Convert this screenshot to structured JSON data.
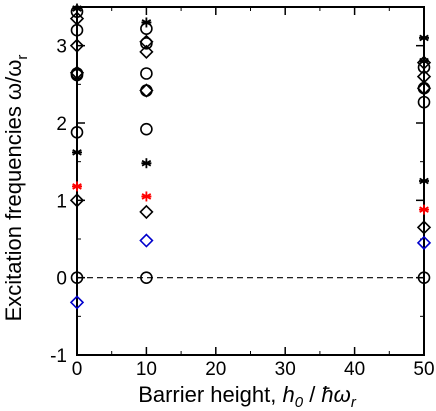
{
  "chart_data": {
    "type": "scatter",
    "title": "",
    "xlabel": {
      "prefix": "Barrier height, ",
      "h": "h",
      "h_sub": "0",
      "slash": " / ",
      "hbar": "ħ",
      "omega": "ω",
      "omega_sub": "r"
    },
    "ylabel": {
      "main": "Excitation frequencies ω/ω",
      "sub": "r"
    },
    "xlim": [
      0,
      50
    ],
    "ylim": [
      -1,
      3.5
    ],
    "xticks": [
      0,
      10,
      20,
      30,
      40,
      50
    ],
    "yticks": [
      -1,
      0,
      1,
      2,
      3
    ],
    "grid": false,
    "reference_line": {
      "y": 0,
      "style": "dashed"
    },
    "colors": {
      "black": "#000000",
      "red": "#ff0000",
      "blue": "#0000cc"
    },
    "series": [
      {
        "marker": "circle",
        "color": "#000000",
        "points": [
          [
            0,
            0
          ],
          [
            0,
            1.88
          ],
          [
            0,
            2.62
          ],
          [
            0,
            2.64
          ],
          [
            0,
            3.2
          ],
          [
            0,
            3.44
          ],
          [
            10,
            0
          ],
          [
            10,
            1.92
          ],
          [
            10,
            2.42
          ],
          [
            10,
            2.64
          ],
          [
            10,
            3.03
          ],
          [
            10,
            3.22
          ],
          [
            50,
            0
          ],
          [
            50,
            2.27
          ],
          [
            50,
            2.45
          ],
          [
            50,
            2.72
          ]
        ]
      },
      {
        "marker": "diamond",
        "color": "#000000",
        "points": [
          [
            0,
            1.0
          ],
          [
            0,
            2.65
          ],
          [
            0,
            3.0
          ],
          [
            0,
            3.35
          ],
          [
            10,
            0.85
          ],
          [
            10,
            2.42
          ],
          [
            10,
            2.92
          ],
          [
            10,
            3.05
          ],
          [
            50,
            0.65
          ],
          [
            50,
            2.45
          ],
          [
            50,
            2.6
          ],
          [
            50,
            2.78
          ]
        ]
      },
      {
        "marker": "asterisk",
        "color": "#000000",
        "points": [
          [
            0,
            1.62
          ],
          [
            0,
            3.48
          ],
          [
            10,
            1.48
          ],
          [
            10,
            3.3
          ],
          [
            50,
            1.25
          ],
          [
            50,
            2.8
          ],
          [
            50,
            3.1
          ]
        ]
      },
      {
        "marker": "asterisk",
        "color": "#ff0000",
        "points": [
          [
            0,
            1.18
          ],
          [
            10,
            1.05
          ],
          [
            50,
            0.88
          ]
        ]
      },
      {
        "marker": "diamond",
        "color": "#0000cc",
        "points": [
          [
            0,
            -0.32
          ],
          [
            10,
            0.48
          ],
          [
            50,
            0.45
          ]
        ]
      }
    ]
  }
}
